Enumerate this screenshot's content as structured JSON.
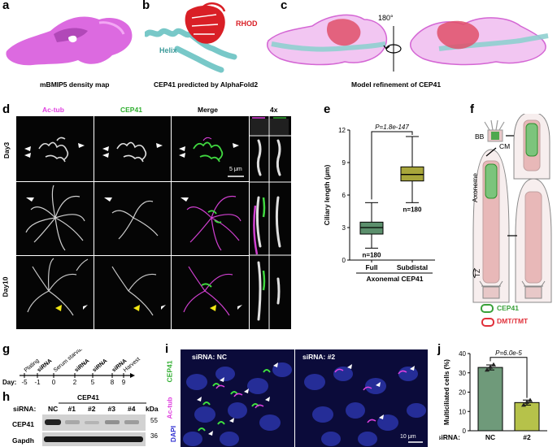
{
  "panels": {
    "a": {
      "letter": "a",
      "caption": "mBMIP5 density map"
    },
    "b": {
      "letter": "b",
      "caption": "CEP41 predicted by AlphaFold2",
      "label_rhod": "RHOD",
      "label_helix": "Helix"
    },
    "c": {
      "letter": "c",
      "caption": "Model refinement of CEP41",
      "rotation": "180°"
    },
    "d": {
      "letter": "d",
      "col_ac": "Ac-tub",
      "col_cep": "CEP41",
      "col_merge": "Merge",
      "col_zoom": "4x",
      "row_day3": "Day3",
      "row_day10": "Day10",
      "scale": "5 μm"
    },
    "e": {
      "letter": "e"
    },
    "f": {
      "letter": "f",
      "bb": "BB",
      "cm": "CM",
      "axoneme": "Axoneme",
      "tz": "TZ",
      "legend_cep41": "CEP41",
      "legend_dmt": "DMT/TMT",
      "colors": {
        "cep41": "#3aa13a",
        "dmt": "#e0303a"
      }
    },
    "g": {
      "letter": "g",
      "day_label": "Day:",
      "days": [
        "-5",
        "-1",
        "0",
        "2",
        "5",
        "8",
        "9"
      ],
      "events": [
        "Plating",
        "siRNA",
        "Serum starvation",
        "siRNA",
        "siRNA",
        "siRNA",
        "Harvest"
      ]
    },
    "h": {
      "letter": "h",
      "header": "CEP41",
      "sirna_label": "siRNA:",
      "lanes": [
        "NC",
        "#1",
        "#2",
        "#3",
        "#4"
      ],
      "kda": "kDa",
      "row1": "CEP41",
      "row2": "Gapdh",
      "mw1": "55",
      "mw2": "36"
    },
    "i": {
      "letter": "i",
      "img1": "siRNA: NC",
      "img2": "siRNA: #2",
      "ch_cep": "CEP41",
      "ch_ac": "Ac-tub",
      "ch_dapi": "DAPI",
      "scale": "10 μm"
    },
    "j": {
      "letter": "j"
    }
  },
  "chart_data": [
    {
      "type": "boxplot",
      "panel": "e",
      "ylabel": "Ciliary length (μm)",
      "ylim": [
        0,
        12
      ],
      "yticks": [
        "0",
        "3",
        "6",
        "9",
        "12"
      ],
      "categories": [
        "Full",
        "Subdistal"
      ],
      "group_label": "Axonemal CEP41",
      "pvalue": "P=1.8e-147",
      "n_labels": [
        "n=180",
        "n=180"
      ],
      "boxes": [
        {
          "name": "Full",
          "min": 1.1,
          "q1": 2.4,
          "median": 3.0,
          "q3": 3.5,
          "max": 5.3,
          "color": "#5b8f6c"
        },
        {
          "name": "Subdistal",
          "min": 5.3,
          "q1": 7.3,
          "median": 7.9,
          "q3": 8.6,
          "max": 11.4,
          "color": "#a8a63b"
        }
      ]
    },
    {
      "type": "bar",
      "panel": "j",
      "ylabel": "Multiciliated cells (%)",
      "ylim": [
        0,
        40
      ],
      "yticks": [
        "0",
        "10",
        "20",
        "30",
        "40"
      ],
      "axis_label": "siRNA:",
      "categories": [
        "NC",
        "#2"
      ],
      "values": [
        32.8,
        14.6
      ],
      "errors": [
        1.3,
        1.3
      ],
      "points": [
        [
          31.5,
          33.0,
          34.2
        ],
        [
          13.3,
          14.8,
          15.8
        ]
      ],
      "pvalue": "P=6.0e-5",
      "colors": [
        "#6f9a7a",
        "#b6c24a"
      ]
    }
  ]
}
